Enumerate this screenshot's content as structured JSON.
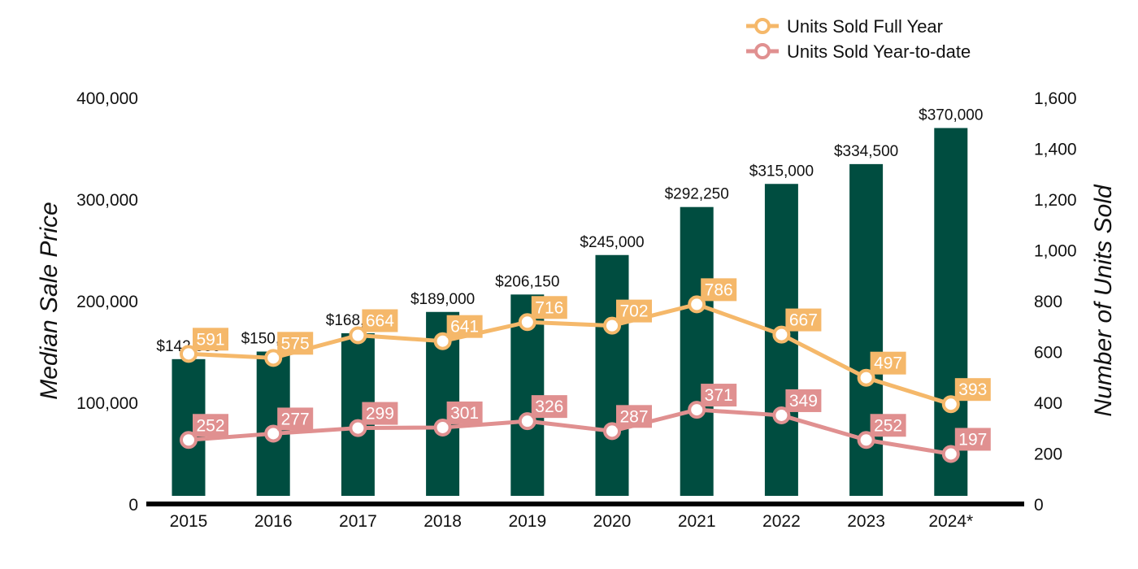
{
  "chart_data": {
    "type": "bar",
    "categories": [
      "2015",
      "2016",
      "2017",
      "2018",
      "2019",
      "2020",
      "2021",
      "2022",
      "2023",
      "2024*"
    ],
    "bar_series": {
      "values": [
        142550,
        150000,
        168000,
        189000,
        206150,
        245000,
        292250,
        315000,
        334500,
        370000
      ],
      "labels": [
        "$142,550",
        "$150,000",
        "$168,000",
        "$189,000",
        "$206,150",
        "$245,000",
        "$292,250",
        "$315,000",
        "$334,500",
        "$370,000"
      ],
      "color": "#004d40"
    },
    "line_series": [
      {
        "name": "Units Sold Full Year",
        "values": [
          591,
          575,
          664,
          641,
          716,
          702,
          786,
          667,
          497,
          393
        ],
        "color": "#f5b86a"
      },
      {
        "name": "Units Sold Year-to-date",
        "values": [
          252,
          277,
          299,
          301,
          326,
          287,
          371,
          349,
          252,
          197
        ],
        "color": "#e09090"
      }
    ],
    "ylabel": "Median Sale Price",
    "y2label": "Number of Units Sold",
    "ylim": [
      0,
      400000
    ],
    "y2lim": [
      0,
      1600
    ],
    "yticks": [
      "0",
      "100,000",
      "200,000",
      "300,000",
      "400,000"
    ],
    "y2ticks": [
      "0",
      "200",
      "400",
      "600",
      "800",
      "1,000",
      "1,200",
      "1,400",
      "1,600"
    ],
    "legend_position": "top-right",
    "grid": false
  }
}
